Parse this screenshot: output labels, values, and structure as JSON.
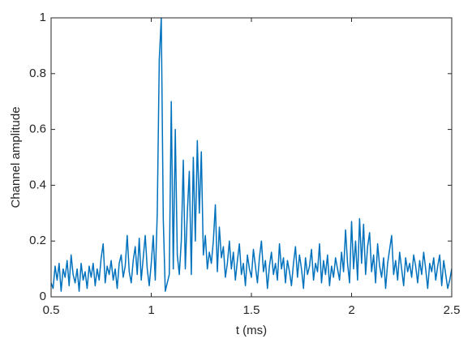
{
  "chart_data": {
    "type": "line",
    "xlabel": "t (ms)",
    "ylabel": "Channel amplitude",
    "xlim": [
      0.5,
      2.5
    ],
    "ylim": [
      0,
      1
    ],
    "xticks": [
      0.5,
      1,
      1.5,
      2,
      2.5
    ],
    "yticks": [
      0,
      0.2,
      0.4,
      0.6,
      0.8,
      1
    ],
    "grid": false,
    "x": [
      0.5,
      0.51,
      0.52,
      0.53,
      0.54,
      0.55,
      0.56,
      0.57,
      0.58,
      0.59,
      0.6,
      0.61,
      0.62,
      0.63,
      0.64,
      0.65,
      0.66,
      0.67,
      0.68,
      0.69,
      0.7,
      0.71,
      0.72,
      0.73,
      0.74,
      0.75,
      0.76,
      0.77,
      0.78,
      0.79,
      0.8,
      0.81,
      0.82,
      0.83,
      0.84,
      0.85,
      0.86,
      0.87,
      0.88,
      0.89,
      0.9,
      0.91,
      0.92,
      0.93,
      0.94,
      0.95,
      0.96,
      0.97,
      0.98,
      0.99,
      1.0,
      1.01,
      1.02,
      1.03,
      1.04,
      1.05,
      1.06,
      1.07,
      1.08,
      1.09,
      1.1,
      1.11,
      1.12,
      1.13,
      1.14,
      1.15,
      1.16,
      1.17,
      1.18,
      1.19,
      1.2,
      1.21,
      1.22,
      1.23,
      1.24,
      1.25,
      1.26,
      1.27,
      1.28,
      1.29,
      1.3,
      1.31,
      1.32,
      1.33,
      1.34,
      1.35,
      1.36,
      1.37,
      1.38,
      1.39,
      1.4,
      1.41,
      1.42,
      1.43,
      1.44,
      1.45,
      1.46,
      1.47,
      1.48,
      1.49,
      1.5,
      1.51,
      1.52,
      1.53,
      1.54,
      1.55,
      1.56,
      1.57,
      1.58,
      1.59,
      1.6,
      1.61,
      1.62,
      1.63,
      1.64,
      1.65,
      1.66,
      1.67,
      1.68,
      1.69,
      1.7,
      1.71,
      1.72,
      1.73,
      1.74,
      1.75,
      1.76,
      1.77,
      1.78,
      1.79,
      1.8,
      1.81,
      1.82,
      1.83,
      1.84,
      1.85,
      1.86,
      1.87,
      1.88,
      1.89,
      1.9,
      1.91,
      1.92,
      1.93,
      1.94,
      1.95,
      1.96,
      1.97,
      1.98,
      1.99,
      2.0,
      2.01,
      2.02,
      2.03,
      2.04,
      2.05,
      2.06,
      2.07,
      2.08,
      2.09,
      2.1,
      2.11,
      2.12,
      2.13,
      2.14,
      2.15,
      2.16,
      2.17,
      2.18,
      2.19,
      2.2,
      2.21,
      2.22,
      2.23,
      2.24,
      2.25,
      2.26,
      2.27,
      2.28,
      2.29,
      2.3,
      2.31,
      2.32,
      2.33,
      2.34,
      2.35,
      2.36,
      2.37,
      2.38,
      2.39,
      2.4,
      2.41,
      2.42,
      2.43,
      2.44,
      2.45,
      2.46,
      2.47,
      2.48,
      2.49,
      2.5
    ],
    "series": [
      {
        "color": "#0072bd",
        "values": [
          0.05,
          0.03,
          0.11,
          0.06,
          0.12,
          0.02,
          0.1,
          0.07,
          0.13,
          0.04,
          0.15,
          0.08,
          0.05,
          0.1,
          0.02,
          0.12,
          0.06,
          0.09,
          0.03,
          0.11,
          0.07,
          0.12,
          0.04,
          0.1,
          0.06,
          0.14,
          0.19,
          0.05,
          0.11,
          0.08,
          0.13,
          0.06,
          0.1,
          0.03,
          0.12,
          0.15,
          0.07,
          0.11,
          0.22,
          0.09,
          0.05,
          0.13,
          0.18,
          0.08,
          0.21,
          0.06,
          0.14,
          0.22,
          0.1,
          0.04,
          0.12,
          0.22,
          0.06,
          0.3,
          0.85,
          1.0,
          0.28,
          0.02,
          0.05,
          0.08,
          0.7,
          0.1,
          0.6,
          0.15,
          0.08,
          0.2,
          0.49,
          0.1,
          0.3,
          0.45,
          0.08,
          0.5,
          0.2,
          0.56,
          0.3,
          0.52,
          0.15,
          0.22,
          0.1,
          0.16,
          0.12,
          0.2,
          0.33,
          0.09,
          0.25,
          0.14,
          0.18,
          0.07,
          0.12,
          0.2,
          0.1,
          0.16,
          0.06,
          0.13,
          0.19,
          0.08,
          0.12,
          0.04,
          0.15,
          0.1,
          0.07,
          0.17,
          0.11,
          0.05,
          0.14,
          0.2,
          0.09,
          0.13,
          0.03,
          0.11,
          0.16,
          0.08,
          0.12,
          0.06,
          0.19,
          0.1,
          0.14,
          0.05,
          0.13,
          0.09,
          0.04,
          0.12,
          0.18,
          0.07,
          0.15,
          0.1,
          0.03,
          0.14,
          0.08,
          0.11,
          0.17,
          0.06,
          0.12,
          0.09,
          0.19,
          0.05,
          0.13,
          0.08,
          0.15,
          0.04,
          0.11,
          0.07,
          0.14,
          0.1,
          0.06,
          0.16,
          0.09,
          0.24,
          0.12,
          0.05,
          0.27,
          0.1,
          0.2,
          0.06,
          0.28,
          0.12,
          0.26,
          0.08,
          0.18,
          0.23,
          0.09,
          0.15,
          0.05,
          0.19,
          0.11,
          0.07,
          0.14,
          0.03,
          0.12,
          0.17,
          0.22,
          0.08,
          0.13,
          0.06,
          0.16,
          0.1,
          0.04,
          0.14,
          0.09,
          0.12,
          0.07,
          0.15,
          0.11,
          0.05,
          0.13,
          0.08,
          0.16,
          0.1,
          0.03,
          0.12,
          0.09,
          0.14,
          0.06,
          0.11,
          0.15,
          0.04,
          0.13,
          0.08,
          0.03,
          0.06,
          0.1
        ]
      }
    ]
  }
}
